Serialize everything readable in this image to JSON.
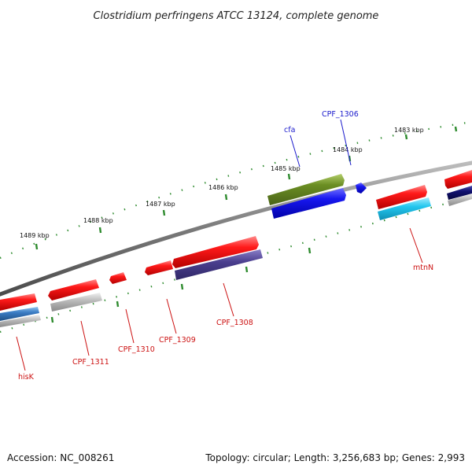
{
  "title": "Clostridium perfringens ATCC 13124, complete genome",
  "footer": {
    "accession": "Accession: NC_008261",
    "summary": "Topology: circular; Length: 3,256,683 bp; Genes: 2,993"
  },
  "kbp_markers": [
    "1483 kbp",
    "1484 kbp",
    "1485 kbp",
    "1486 kbp",
    "1487 kbp",
    "1488 kbp",
    "1489 kbp"
  ],
  "gene_labels": {
    "cfa": "cfa",
    "cpf_1306": "CPF_1306",
    "mtnN": "mtnN",
    "cpf_1308": "CPF_1308",
    "cpf_1309": "CPF_1309",
    "cpf_1310": "CPF_1310",
    "cpf_1311": "CPF_1311",
    "hisK": "hisK"
  },
  "colors": {
    "backbone": "#7a7a7a",
    "tick_green": "#2e8b2e",
    "cds_red": "#ee1111",
    "cds_blue": "#1111ee",
    "cds_olive": "#6b8e23",
    "cds_cyan": "#22c6ee",
    "cds_slate": "#4b3f8f",
    "cds_gray": "#a9a9a9",
    "label_blue": "#1a1acc",
    "label_red": "#cc1111"
  }
}
